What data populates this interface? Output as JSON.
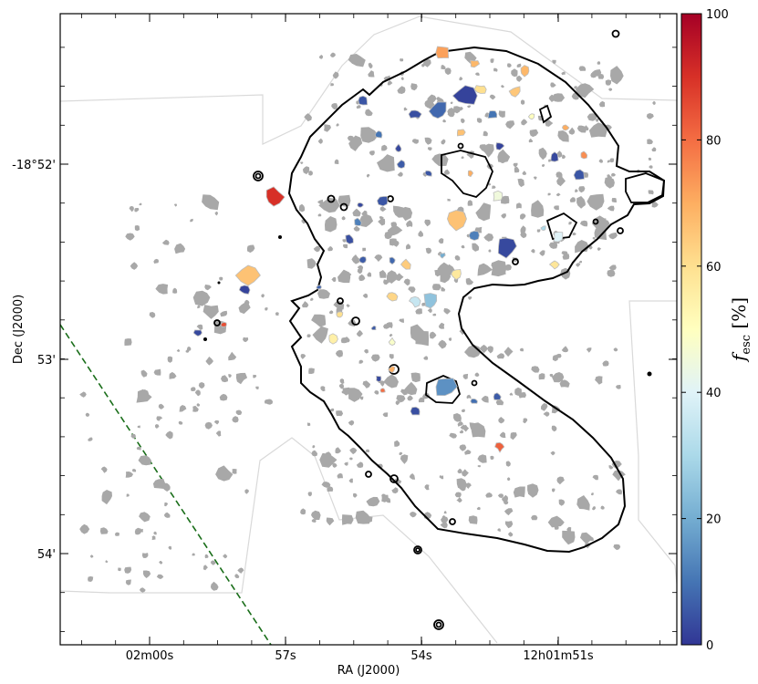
{
  "chart_data": {
    "type": "scatter",
    "title": "",
    "xlabel": "RA (J2000)",
    "ylabel": "Dec (J2000)",
    "x_ticks": [
      "02m00s",
      "57s",
      "54s",
      "12h01m51s"
    ],
    "y_ticks": [
      "-18°52'",
      "53'",
      "54'"
    ],
    "colorbar": {
      "label_main": "f",
      "label_sub": "esc",
      "label_unit": " [%]",
      "range": [
        0,
        100
      ],
      "ticks": [
        "0",
        "20",
        "40",
        "60",
        "80",
        "100"
      ],
      "colormap": [
        "#313695",
        "#4575b4",
        "#74add1",
        "#abd9e9",
        "#e0f3f8",
        "#ffffbf",
        "#fee090",
        "#fdae61",
        "#f46d43",
        "#d73027",
        "#a50026"
      ]
    },
    "grey_color": "#a8a8a8",
    "contour_color": "#000000",
    "footprint_color": "#d9d9d9",
    "dashed_line_color": "#1a6e1a",
    "colored_sources_fesc_percent": [
      72,
      68,
      5,
      3,
      10,
      60,
      65,
      8,
      2,
      70,
      45,
      12,
      4,
      62,
      66,
      3,
      5,
      6,
      85,
      88,
      50,
      25,
      7,
      3,
      4,
      55,
      64,
      70,
      15,
      9,
      82,
      6,
      3,
      40,
      58,
      66,
      2,
      75,
      30,
      8,
      4,
      60,
      90,
      5,
      3,
      12,
      48,
      6,
      68,
      2,
      35,
      57,
      70,
      80,
      6,
      10,
      3,
      20,
      66,
      5
    ]
  }
}
